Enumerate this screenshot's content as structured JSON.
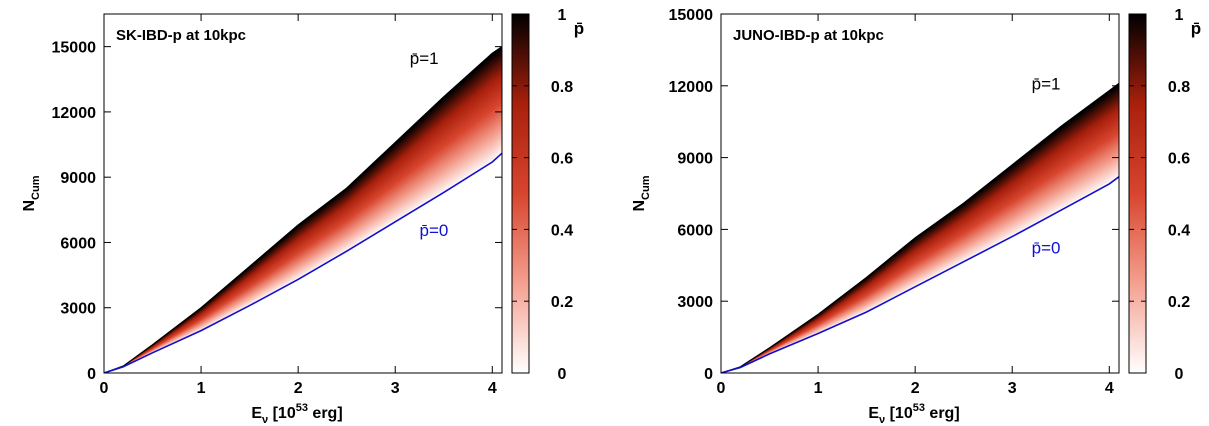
{
  "chart_data": [
    {
      "type": "area",
      "title": "SK-IBD-p at 10kpc",
      "xlabel_main": "E",
      "xlabel_sub": "ν",
      "xlabel_unit_pre": " [10",
      "xlabel_unit_exp": "53",
      "xlabel_unit_post": " erg]",
      "ylabel_main": "N",
      "ylabel_sub": "Cum",
      "xlim": [
        0,
        4.1
      ],
      "ylim": [
        0,
        16500
      ],
      "xticks": [
        0,
        1,
        2,
        3,
        4
      ],
      "yticks": [
        0,
        3000,
        6000,
        9000,
        12000,
        15000
      ],
      "series": [
        {
          "name": "p̄=1",
          "color": "#000000",
          "x": [
            0,
            0.2,
            0.5,
            1.0,
            1.5,
            2.0,
            2.5,
            3.0,
            3.5,
            4.0,
            4.1
          ],
          "y": [
            0,
            320,
            1300,
            3000,
            4900,
            6800,
            8500,
            10600,
            12700,
            14700,
            15000
          ]
        },
        {
          "name": "p̄=0",
          "color": "#1010d0",
          "x": [
            0,
            0.2,
            0.5,
            1.0,
            1.5,
            2.0,
            2.5,
            3.0,
            3.5,
            4.0,
            4.1
          ],
          "y": [
            0,
            290,
            930,
            1950,
            3100,
            4300,
            5600,
            6950,
            8300,
            9700,
            10100
          ]
        }
      ],
      "annotations": [
        {
          "text": "p̄=1",
          "x": 3.15,
          "y": 14200,
          "color": "#000000"
        },
        {
          "text": "p̄=0",
          "x": 3.25,
          "y": 6300,
          "color": "#1010d0"
        }
      ],
      "colorbar": {
        "label": "p̄",
        "range": [
          0,
          1
        ],
        "ticks": [
          "0",
          "0.2",
          "0.4",
          "0.6",
          "0.8",
          "1"
        ],
        "colors": [
          "#ffffff",
          "#f4a090",
          "#d8452e",
          "#a8200c",
          "#000000"
        ]
      }
    },
    {
      "type": "area",
      "title": "JUNO-IBD-p at 10kpc",
      "xlabel_main": "E",
      "xlabel_sub": "ν",
      "xlabel_unit_pre": " [10",
      "xlabel_unit_exp": "53",
      "xlabel_unit_post": " erg]",
      "ylabel_main": "N",
      "ylabel_sub": "Cum",
      "xlim": [
        0,
        4.1
      ],
      "ylim": [
        0,
        15000
      ],
      "xticks": [
        0,
        1,
        2,
        3,
        4
      ],
      "yticks": [
        0,
        3000,
        6000,
        9000,
        12000,
        15000
      ],
      "series": [
        {
          "name": "p̄=1",
          "color": "#000000",
          "x": [
            0,
            0.2,
            0.5,
            1.0,
            1.5,
            2.0,
            2.5,
            3.0,
            3.5,
            4.0,
            4.1
          ],
          "y": [
            0,
            260,
            1050,
            2450,
            4000,
            5650,
            7100,
            8700,
            10300,
            11800,
            12100
          ]
        },
        {
          "name": "p̄=0",
          "color": "#1010d0",
          "x": [
            0,
            0.2,
            0.5,
            1.0,
            1.5,
            2.0,
            2.5,
            3.0,
            3.5,
            4.0,
            4.1
          ],
          "y": [
            0,
            230,
            800,
            1650,
            2550,
            3600,
            4650,
            5700,
            6800,
            7900,
            8200
          ]
        }
      ],
      "annotations": [
        {
          "text": "p̄=1",
          "x": 3.2,
          "y": 11850,
          "color": "#000000"
        },
        {
          "text": "p̄=0",
          "x": 3.2,
          "y": 5000,
          "color": "#1010d0"
        }
      ],
      "colorbar": {
        "label": "p̄",
        "range": [
          0,
          1
        ],
        "ticks": [
          "0",
          "0.2",
          "0.4",
          "0.6",
          "0.8",
          "1"
        ],
        "colors": [
          "#ffffff",
          "#f4a090",
          "#d8452e",
          "#a8200c",
          "#000000"
        ]
      }
    }
  ]
}
